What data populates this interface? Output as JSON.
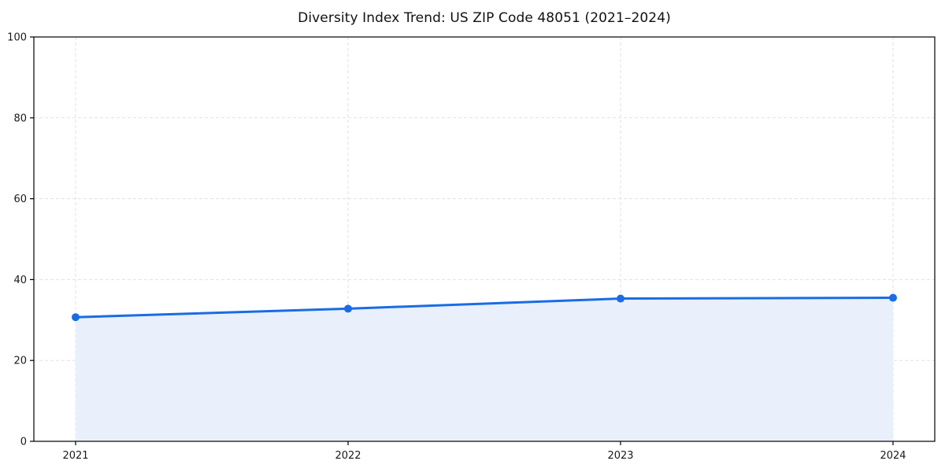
{
  "chart_data": {
    "type": "area",
    "title": "Diversity Index Trend: US ZIP Code 48051 (2021–2024)",
    "x": [
      2021,
      2022,
      2023,
      2024
    ],
    "xticks": [
      "2021",
      "2022",
      "2023",
      "2024"
    ],
    "series": [
      {
        "name": "Diversity Index",
        "values": [
          30.7,
          32.8,
          35.3,
          35.5
        ]
      }
    ],
    "xlabel": "",
    "ylabel": "",
    "ylim": [
      0,
      100
    ],
    "yticks": [
      0,
      20,
      40,
      60,
      80,
      100
    ],
    "grid": true,
    "grid_style": "dashed",
    "legend_position": "none",
    "marker": "circle",
    "colors": {
      "line": "#1a6ce4",
      "marker": "#1a6ce4",
      "fill": "#e9f0fc",
      "grid": "#e1e1e1",
      "axis": "#000000",
      "tick_text": "#1a1a1a",
      "title_text": "#111111",
      "background": "#ffffff"
    }
  }
}
